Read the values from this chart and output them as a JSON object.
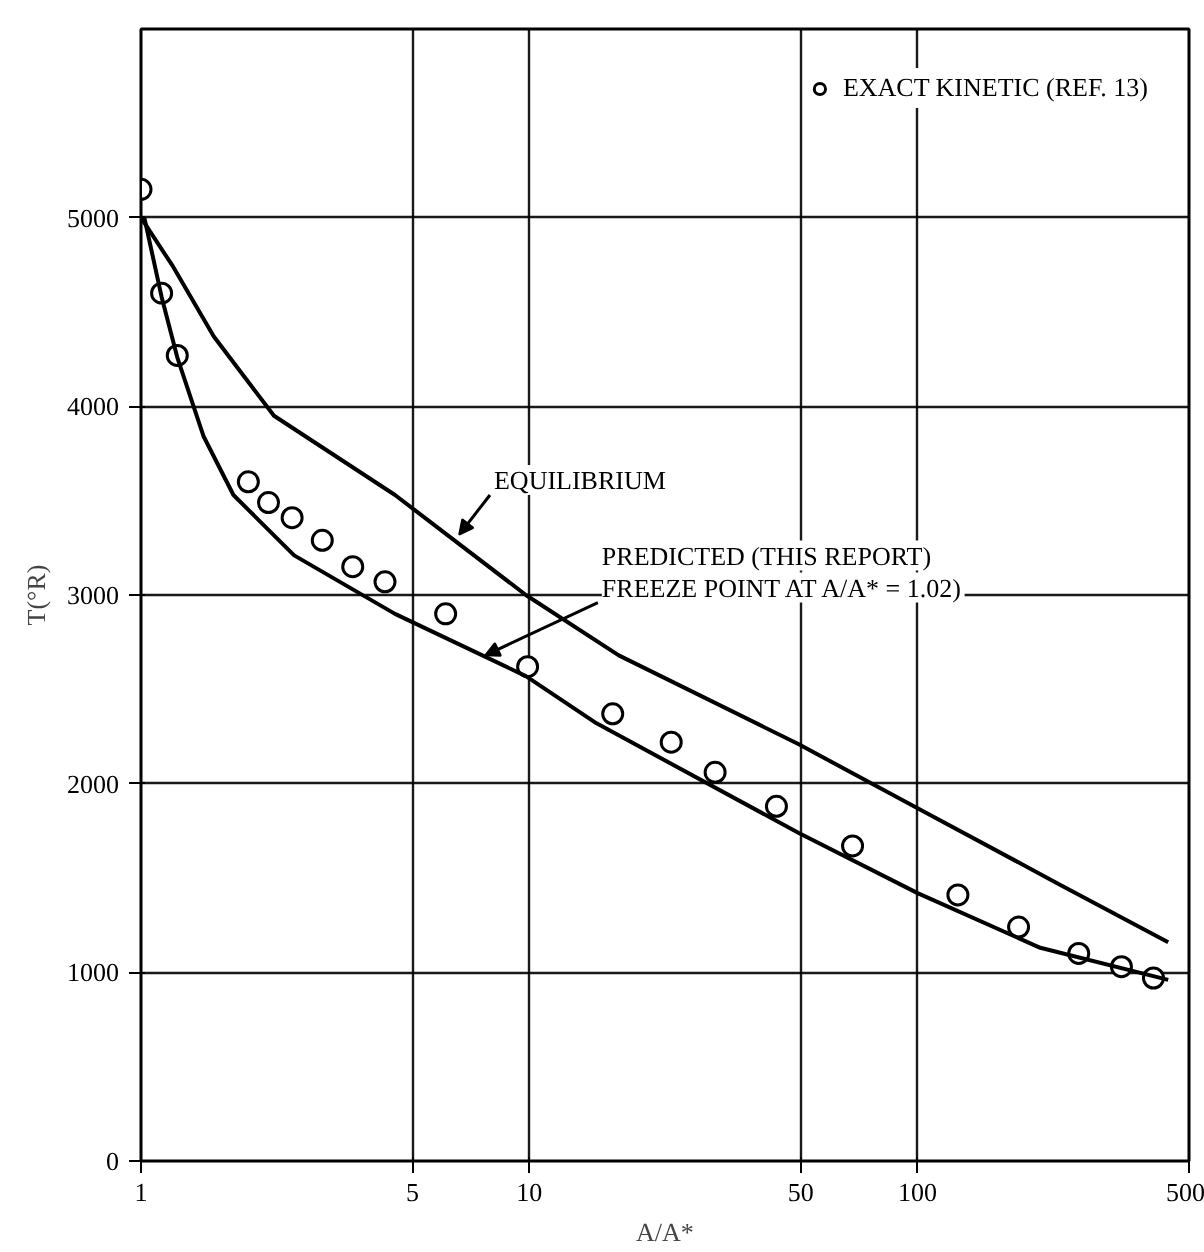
{
  "chart_data": {
    "type": "line",
    "xlabel": "A/A*",
    "ylabel": "T(°R)",
    "log": "x",
    "xlim": [
      1,
      500
    ],
    "ylim": [
      0,
      6000
    ],
    "xticks": [
      1,
      5,
      10,
      50,
      100,
      500
    ],
    "yticks": [
      0,
      1000,
      2000,
      3000,
      4000,
      5000
    ],
    "grid": true,
    "legend": "top right",
    "line_style": "solid",
    "series": [
      {
        "type": "scatter",
        "name": "EXACT KINETIC (REF. 13)",
        "color": "#000000",
        "marker": "circle",
        "x": [
          1,
          1.13,
          1.24,
          1.89,
          2.13,
          2.45,
          2.93,
          3.51,
          4.25,
          6.09,
          9.9,
          16.4,
          23.2,
          30.1,
          43.3,
          68,
          127,
          182,
          260,
          335,
          405
        ],
        "values": [
          5150,
          4600,
          4270,
          3600,
          3490,
          3410,
          3290,
          3150,
          3070,
          2900,
          2620,
          2370,
          2220,
          2060,
          1880,
          1670,
          1410,
          1240,
          1100,
          1030,
          970
        ]
      },
      {
        "color": "#000000",
        "x": [
          1,
          1.21,
          1.54,
          2.2,
          4.51,
          9.8,
          17,
          49.3,
          100,
          230,
          442
        ],
        "values": [
          5000,
          4740,
          4370,
          3950,
          3530,
          3000,
          2680,
          2210,
          1870,
          1470,
          1160
        ]
      },
      {
        "color": "#000000",
        "x": [
          1.02,
          1.13,
          1.24,
          1.45,
          1.73,
          2.48,
          4.51,
          9.8,
          14.9,
          49.3,
          100,
          207,
          442
        ],
        "values": [
          5000,
          4580,
          4260,
          3840,
          3530,
          3210,
          2900,
          2570,
          2320,
          1740,
          1420,
          1130,
          960
        ]
      }
    ],
    "annotations": [
      {
        "text": "EQUILIBRIUM",
        "x": 6.6,
        "y": 3320
      },
      {
        "text": "PREDICTED (THIS REPORT)\nFREEZE POINT AT A/A* = 1.02)",
        "x": 7.7,
        "y": 2680
      }
    ]
  }
}
